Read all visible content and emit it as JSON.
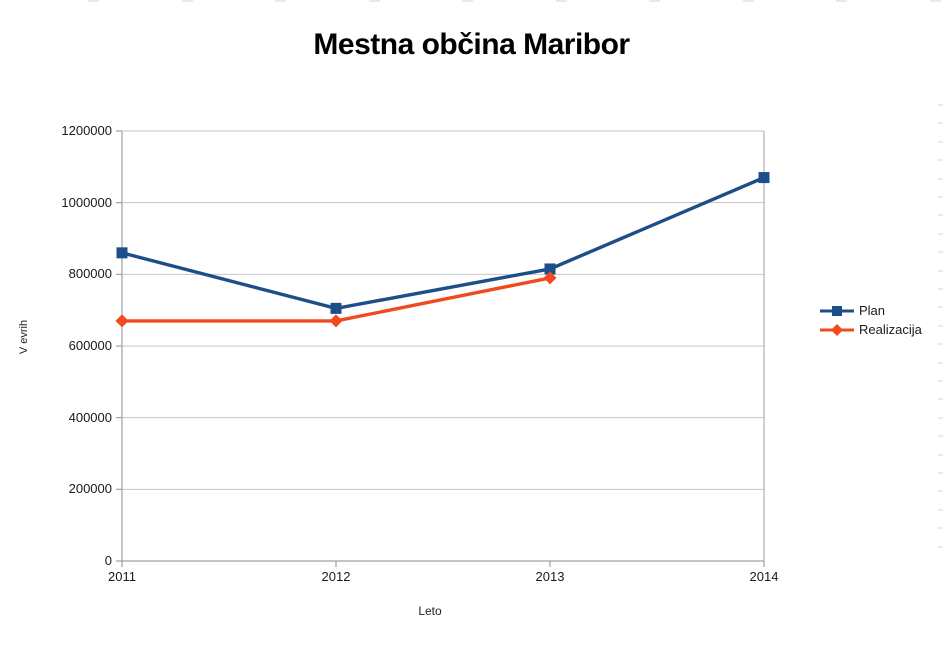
{
  "title": "Mestna občina Maribor",
  "chart_data": {
    "type": "line",
    "title": "Mestna občina Maribor",
    "xlabel": "Leto",
    "ylabel": "V evrih",
    "categories": [
      "2011",
      "2012",
      "2013",
      "2014"
    ],
    "series": [
      {
        "name": "Plan",
        "color": "#1c4e8a",
        "marker": "square",
        "values": [
          860000,
          705000,
          815000,
          1070000
        ]
      },
      {
        "name": "Realizacija",
        "color": "#f04a1e",
        "marker": "diamond",
        "values": [
          670000,
          670000,
          790000,
          null
        ]
      }
    ],
    "ylim": [
      0,
      1200000
    ],
    "yticks": [
      0,
      200000,
      400000,
      600000,
      800000,
      1000000,
      1200000
    ],
    "grid": true,
    "legend_position": "right",
    "colors": {
      "gridline": "#c6c6c6",
      "axis": "#a0a0a0",
      "text": "#1a1a1a"
    }
  }
}
